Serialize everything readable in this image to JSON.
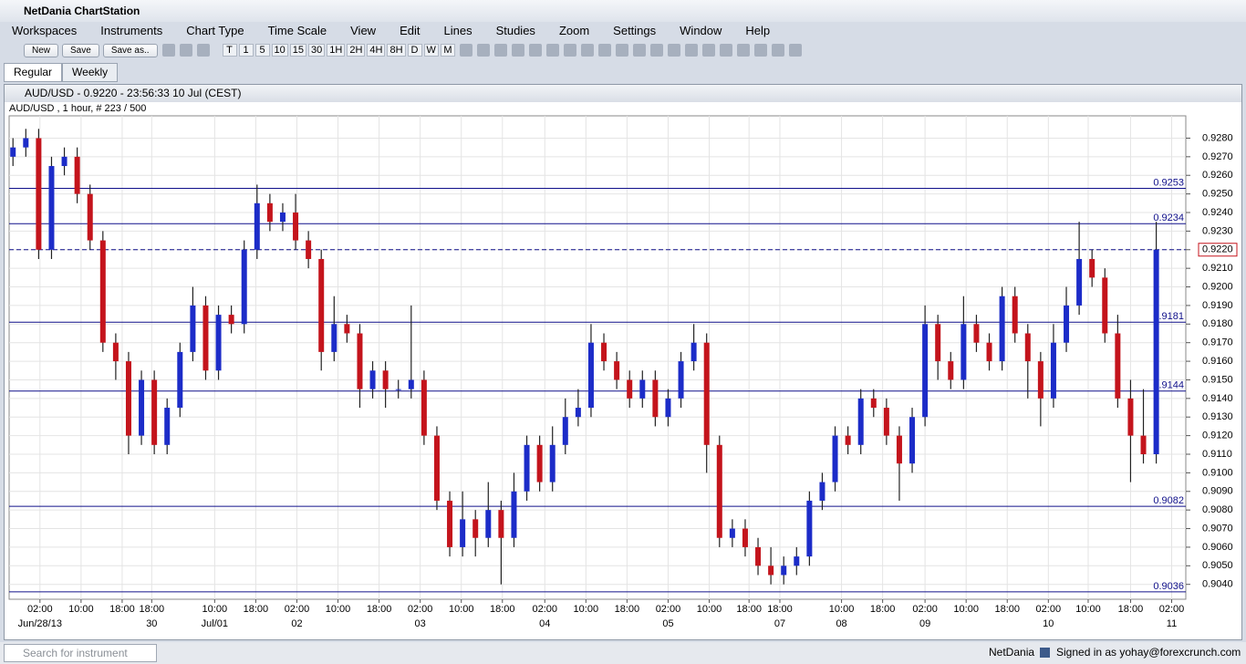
{
  "window": {
    "title": "NetDania ChartStation"
  },
  "menu": [
    "Workspaces",
    "Instruments",
    "Chart Type",
    "Time Scale",
    "View",
    "Edit",
    "Lines",
    "Studies",
    "Zoom",
    "Settings",
    "Window",
    "Help"
  ],
  "toolbar": {
    "buttons": [
      "New",
      "Save",
      "Save as.."
    ],
    "timescales": [
      "T",
      "1",
      "5",
      "10",
      "15",
      "30",
      "1H",
      "2H",
      "4H",
      "8H",
      "D",
      "W",
      "M"
    ]
  },
  "tabs": [
    "Regular",
    "Weekly"
  ],
  "chart_window": {
    "title": "AUD/USD - 0.9220 - 23:56:33  10 Jul (CEST)"
  },
  "chart_data": {
    "type": "candlestick",
    "subtitle": "AUD/USD , 1 hour, # 223 / 500",
    "up_color": "#1c2cc8",
    "down_color": "#c4141c",
    "level_color": "#10108a",
    "grid": true,
    "open": [
      0.927,
      0.9275,
      0.928,
      0.922,
      0.9265,
      0.927,
      0.925,
      0.9225,
      0.917,
      0.916,
      0.912,
      0.915,
      0.9115,
      0.9135,
      0.9165,
      0.919,
      0.9155,
      0.9185,
      0.918,
      0.922,
      0.9245,
      0.9235,
      0.924,
      0.9225,
      0.9215,
      0.9165,
      0.918,
      0.9175,
      0.9145,
      0.9155,
      0.9145,
      0.9145,
      0.915,
      0.912,
      0.9085,
      0.906,
      0.9075,
      0.9065,
      0.908,
      0.9065,
      0.909,
      0.9115,
      0.9095,
      0.9115,
      0.913,
      0.9135,
      0.917,
      0.916,
      0.915,
      0.914,
      0.915,
      0.913,
      0.914,
      0.916,
      0.917,
      0.9115,
      0.9065,
      0.907,
      0.906,
      0.905,
      0.9045,
      0.905,
      0.9055,
      0.9085,
      0.9095,
      0.912,
      0.9115,
      0.914,
      0.9135,
      0.912,
      0.9105,
      0.913,
      0.918,
      0.916,
      0.915,
      0.918,
      0.917,
      0.916,
      0.9195,
      0.9175,
      0.916,
      0.914,
      0.917,
      0.919,
      0.9215,
      0.9205,
      0.9175,
      0.914,
      0.912,
      0.911
    ],
    "high": [
      0.928,
      0.9285,
      0.9285,
      0.927,
      0.9275,
      0.9275,
      0.9255,
      0.923,
      0.9175,
      0.9165,
      0.9155,
      0.9155,
      0.914,
      0.917,
      0.92,
      0.9195,
      0.919,
      0.919,
      0.9225,
      0.9255,
      0.925,
      0.9245,
      0.925,
      0.923,
      0.922,
      0.9195,
      0.9185,
      0.918,
      0.916,
      0.916,
      0.915,
      0.919,
      0.9155,
      0.9125,
      0.909,
      0.909,
      0.908,
      0.9095,
      0.9085,
      0.91,
      0.912,
      0.912,
      0.9125,
      0.914,
      0.9145,
      0.918,
      0.9175,
      0.9165,
      0.9155,
      0.9155,
      0.9155,
      0.9145,
      0.9165,
      0.918,
      0.9175,
      0.912,
      0.9075,
      0.9075,
      0.9065,
      0.906,
      0.9055,
      0.906,
      0.909,
      0.91,
      0.9125,
      0.9125,
      0.9145,
      0.9145,
      0.914,
      0.9125,
      0.9135,
      0.919,
      0.9185,
      0.9165,
      0.9195,
      0.9185,
      0.9175,
      0.92,
      0.92,
      0.918,
      0.9165,
      0.918,
      0.92,
      0.9235,
      0.922,
      0.921,
      0.9185,
      0.915,
      0.9145,
      0.9235
    ],
    "low": [
      0.9265,
      0.927,
      0.9215,
      0.9215,
      0.926,
      0.9245,
      0.922,
      0.9165,
      0.915,
      0.911,
      0.9115,
      0.911,
      0.911,
      0.913,
      0.916,
      0.915,
      0.915,
      0.9175,
      0.9175,
      0.9215,
      0.923,
      0.923,
      0.922,
      0.921,
      0.9155,
      0.916,
      0.917,
      0.9135,
      0.914,
      0.9135,
      0.914,
      0.914,
      0.9115,
      0.908,
      0.9055,
      0.9055,
      0.9055,
      0.906,
      0.904,
      0.906,
      0.9085,
      0.909,
      0.909,
      0.911,
      0.9125,
      0.913,
      0.9155,
      0.9145,
      0.9135,
      0.9135,
      0.9125,
      0.9125,
      0.9135,
      0.9155,
      0.91,
      0.906,
      0.906,
      0.9055,
      0.9045,
      0.904,
      0.904,
      0.9045,
      0.905,
      0.908,
      0.909,
      0.911,
      0.911,
      0.913,
      0.9115,
      0.9085,
      0.91,
      0.9125,
      0.915,
      0.9145,
      0.9145,
      0.9165,
      0.9155,
      0.9155,
      0.917,
      0.914,
      0.9125,
      0.9135,
      0.9165,
      0.9185,
      0.92,
      0.917,
      0.9135,
      0.9095,
      0.9105,
      0.9105
    ],
    "close": [
      0.9275,
      0.928,
      0.922,
      0.9265,
      0.927,
      0.925,
      0.9225,
      0.917,
      0.916,
      0.912,
      0.915,
      0.9115,
      0.9135,
      0.9165,
      0.919,
      0.9155,
      0.9185,
      0.918,
      0.922,
      0.9245,
      0.9235,
      0.924,
      0.9225,
      0.9215,
      0.9165,
      0.918,
      0.9175,
      0.9145,
      0.9155,
      0.9145,
      0.9145,
      0.915,
      0.912,
      0.9085,
      0.906,
      0.9075,
      0.9065,
      0.908,
      0.9065,
      0.909,
      0.9115,
      0.9095,
      0.9115,
      0.913,
      0.9135,
      0.917,
      0.916,
      0.915,
      0.914,
      0.915,
      0.913,
      0.914,
      0.916,
      0.917,
      0.9115,
      0.9065,
      0.907,
      0.906,
      0.905,
      0.9045,
      0.905,
      0.9055,
      0.9085,
      0.9095,
      0.912,
      0.9115,
      0.914,
      0.9135,
      0.912,
      0.9105,
      0.913,
      0.918,
      0.916,
      0.915,
      0.918,
      0.917,
      0.916,
      0.9195,
      0.9175,
      0.916,
      0.914,
      0.917,
      0.919,
      0.9215,
      0.9205,
      0.9175,
      0.914,
      0.912,
      0.911,
      0.922
    ],
    "xlim": [
      -0.3,
      91.3
    ],
    "xticks": [
      {
        "value": 2.1,
        "label": "02:00"
      },
      {
        "value": 5.3,
        "label": "10:00"
      },
      {
        "value": 8.5,
        "label": "18:00"
      },
      {
        "value": 10.8,
        "label": "18:00"
      },
      {
        "value": 15.7,
        "label": "10:00"
      },
      {
        "value": 18.9,
        "label": "18:00"
      },
      {
        "value": 22.1,
        "label": "02:00"
      },
      {
        "value": 25.3,
        "label": "10:00"
      },
      {
        "value": 28.5,
        "label": "18:00"
      },
      {
        "value": 31.7,
        "label": "02:00"
      },
      {
        "value": 34.9,
        "label": "10:00"
      },
      {
        "value": 38.1,
        "label": "18:00"
      },
      {
        "value": 41.4,
        "label": "02:00"
      },
      {
        "value": 44.6,
        "label": "10:00"
      },
      {
        "value": 47.8,
        "label": "18:00"
      },
      {
        "value": 51.0,
        "label": "02:00"
      },
      {
        "value": 54.2,
        "label": "10:00"
      },
      {
        "value": 57.3,
        "label": "18:00"
      },
      {
        "value": 59.7,
        "label": "18:00"
      },
      {
        "value": 64.5,
        "label": "10:00"
      },
      {
        "value": 67.7,
        "label": "18:00"
      },
      {
        "value": 71.0,
        "label": "02:00"
      },
      {
        "value": 74.2,
        "label": "10:00"
      },
      {
        "value": 77.4,
        "label": "18:00"
      },
      {
        "value": 80.6,
        "label": "02:00"
      },
      {
        "value": 83.7,
        "label": "10:00"
      },
      {
        "value": 87.0,
        "label": "18:00"
      },
      {
        "value": 90.2,
        "label": "02:00"
      }
    ],
    "date_labels": [
      {
        "value": 2.1,
        "label": "Jun/28/13"
      },
      {
        "value": 10.8,
        "label": "30"
      },
      {
        "value": 15.7,
        "label": "Jul/01"
      },
      {
        "value": 22.1,
        "label": "02"
      },
      {
        "value": 31.7,
        "label": "03"
      },
      {
        "value": 41.4,
        "label": "04"
      },
      {
        "value": 51.0,
        "label": "05"
      },
      {
        "value": 59.7,
        "label": "07"
      },
      {
        "value": 64.5,
        "label": "08"
      },
      {
        "value": 71.0,
        "label": "09"
      },
      {
        "value": 80.6,
        "label": "10"
      },
      {
        "value": 90.2,
        "label": "11"
      }
    ],
    "ylim": [
      0.9032,
      0.9292
    ],
    "yticks": [
      {
        "value": 0.904,
        "label": "0.9040"
      },
      {
        "value": 0.905,
        "label": "0.9050"
      },
      {
        "value": 0.906,
        "label": "0.9060"
      },
      {
        "value": 0.907,
        "label": "0.9070"
      },
      {
        "value": 0.908,
        "label": "0.9080"
      },
      {
        "value": 0.909,
        "label": "0.9090"
      },
      {
        "value": 0.91,
        "label": "0.9100"
      },
      {
        "value": 0.911,
        "label": "0.9110"
      },
      {
        "value": 0.912,
        "label": "0.9120"
      },
      {
        "value": 0.913,
        "label": "0.9130"
      },
      {
        "value": 0.914,
        "label": "0.9140"
      },
      {
        "value": 0.915,
        "label": "0.9150"
      },
      {
        "value": 0.916,
        "label": "0.9160"
      },
      {
        "value": 0.917,
        "label": "0.9170"
      },
      {
        "value": 0.918,
        "label": "0.9180"
      },
      {
        "value": 0.919,
        "label": "0.9190"
      },
      {
        "value": 0.92,
        "label": "0.9200"
      },
      {
        "value": 0.921,
        "label": "0.9210"
      },
      {
        "value": 0.922,
        "label": "0.9220"
      },
      {
        "value": 0.923,
        "label": "0.9230"
      },
      {
        "value": 0.924,
        "label": "0.9240"
      },
      {
        "value": 0.925,
        "label": "0.9250"
      },
      {
        "value": 0.926,
        "label": "0.9260"
      },
      {
        "value": 0.927,
        "label": "0.9270"
      },
      {
        "value": 0.928,
        "label": "0.9280"
      }
    ],
    "levels": [
      0.9253,
      0.9234,
      0.9181,
      0.9144,
      0.9082,
      0.9036
    ],
    "current_price": {
      "value": 0.922,
      "label": "0.9220"
    }
  },
  "status": {
    "search_placeholder": "Search for instrument",
    "brand": "NetDania",
    "user": "Signed in as yohay@forexcrunch.com"
  }
}
